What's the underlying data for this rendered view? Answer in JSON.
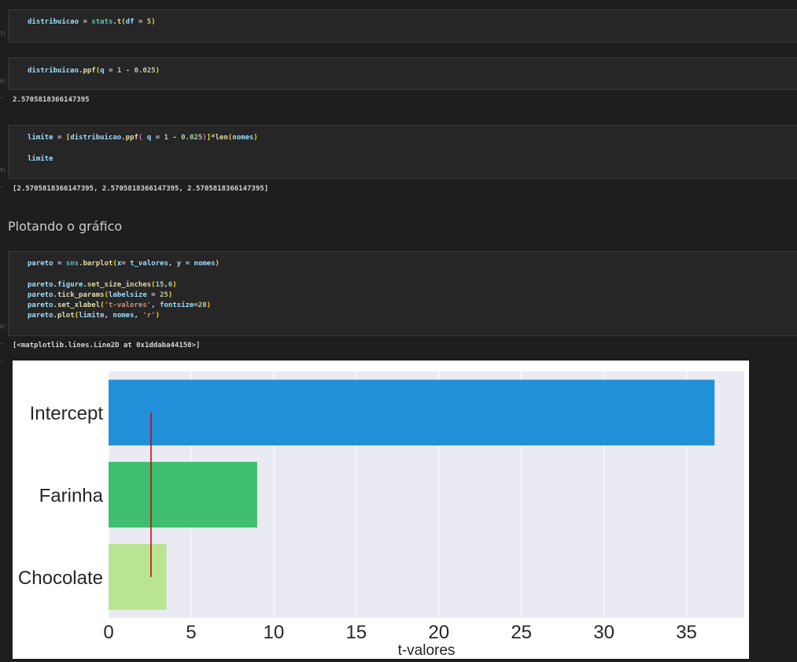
{
  "cells": [
    {
      "exec_count": "7]",
      "lines": [
        "distribuicao = stats.t(df = 5)"
      ]
    },
    {
      "exec_count": "8]",
      "lines": [
        "distribuicao.ppf(q = 1 - 0.025)"
      ],
      "output": "2.5705818366147395"
    },
    {
      "exec_count": "9]",
      "lines": [
        "limite = [distribuicao.ppf( q = 1 - 0.025)]*len(nomes)",
        "limite"
      ],
      "output": "[2.5705818366147395, 2.5705818366147395, 2.5705818366147395]"
    },
    {
      "exec_count": "0]",
      "lines": [
        "pareto = sns.barplot(x= t_valores, y = nomes)",
        "pareto.figure.set_size_inches(15,6)",
        "pareto.tick_params(labelsize = 25)",
        "pareto.set_xlabel('t-valores', fontsize=20)",
        "pareto.plot(limite, nomes, 'r')"
      ],
      "output": "[<matplotlib.lines.Line2D at 0x1ddaba44150>]"
    }
  ],
  "markdown": {
    "heading": "Plotando o gráfico"
  },
  "out_marker": "·",
  "chart_data": {
    "type": "bar",
    "orientation": "horizontal",
    "categories": [
      "Intercept",
      "Farinha",
      "Chocolate"
    ],
    "values": [
      36.7,
      9.0,
      3.5
    ],
    "colors": [
      "#228fd9",
      "#3dbf6f",
      "#b8e493"
    ],
    "xlabel": "t-valores",
    "ylabel": "",
    "xlim": [
      0,
      38.5
    ],
    "xticks": [
      0,
      5,
      10,
      15,
      20,
      25,
      30,
      35
    ],
    "grid": true,
    "background": "#eaeaf2",
    "reference_line": {
      "x": 2.5705818366147395,
      "color": "#cc0000"
    }
  }
}
